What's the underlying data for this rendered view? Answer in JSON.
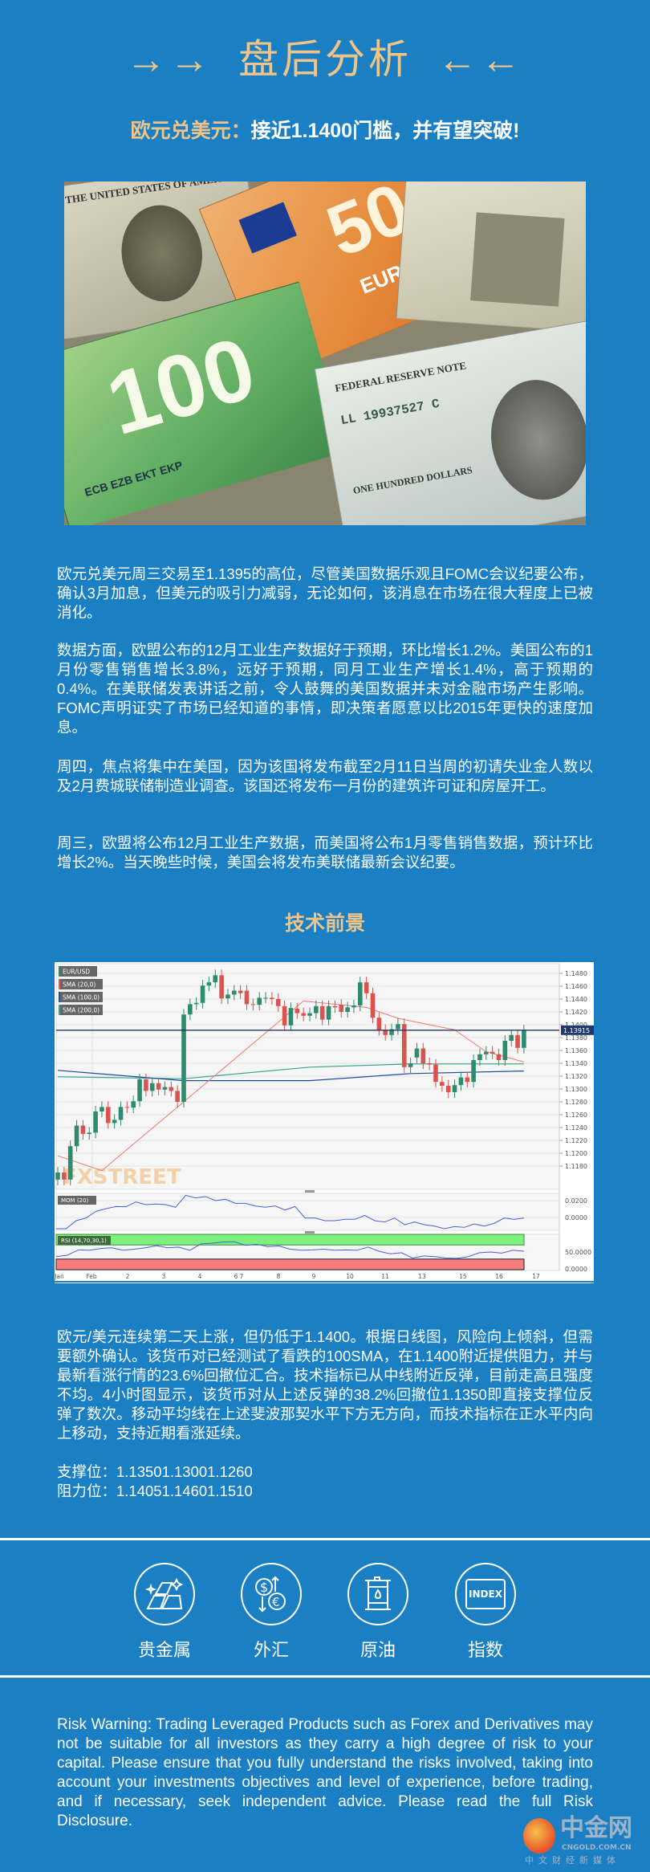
{
  "header": {
    "arrows_left": "→→",
    "title": "盘后分析",
    "arrows_right": "←←",
    "subtitle_pair": "欧元兑美元：",
    "subtitle_text": "接近1.1400门槛，并有望突破!"
  },
  "photo": {
    "note_labels": [
      "50",
      "EURO",
      "100",
      "ONE HUNDRED DOLLARS",
      "THE UNITED STATES OF AMERICA",
      "FEDERAL RESERVE NOTE",
      "LL 19937527 C",
      "ECB EZB EKT EKP"
    ]
  },
  "article": {
    "paragraphs": [
      "欧元兑美元周三交易至1.1395的高位，尽管美国数据乐观且FOMC会议纪要公布，确认3月加息，但美元的吸引力减弱，无论如何，该消息在市场在很大程度上已被消化。",
      "数据方面，欧盟公布的12月工业生产数据好于预期，环比增长1.2%。美国公布的1月份零售销售增长3.8%，远好于预期，同月工业生产增长1.4%，高于预期的0.4%。在美联储发表讲话之前，令人鼓舞的美国数据并未对金融市场产生影响。FOMC声明证实了市场已经知道的事情，即决策者愿意以比2015年更快的速度加息。",
      "周四，焦点将集中在美国，因为该国将发布截至2月11日当周的初请失业金人数以及2月费城联储制造业调查。该国还将发布一月份的建筑许可证和房屋开工。",
      "周三，欧盟将公布12月工业生产数据，而美国将公布1月零售销售数据，预计环比增长2%。当天晚些时候，美国会将发布美联储最新会议纪要。"
    ],
    "tech_heading": "技术前景",
    "tech_paragraph": "欧元/美元连续第二天上涨，但仍低于1.1400。根据日线图，风险向上倾斜，但需要额外确认。该货币对已经测试了看跌的100SMA，在1.1400附近提供阻力，并与最新看涨行情的23.6%回撤位汇合。技术指标已从中线附近反弹，目前走高且强度不均。4小时图显示，该货币对从上述反弹的38.2%回撤位1.1350即直接支撑位反弹了数次。移动平均线在上述斐波那契水平下方无方向，而技术指标在正水平内向上移动，支持近期看涨延续。",
    "support": "支撑位：1.13501.13001.1260",
    "resistance": "阻力位：1.14051.14601.1510"
  },
  "categories": [
    {
      "label": "贵金属",
      "icon": "gold-bars-icon"
    },
    {
      "label": "外汇",
      "icon": "currency-exchange-icon"
    },
    {
      "label": "原油",
      "icon": "oil-barrel-icon"
    },
    {
      "label": "指数",
      "icon": "index-icon",
      "icon_text": "INDEX"
    }
  ],
  "risk_warning": "Risk Warning: Trading Leveraged Products such as Forex and Derivatives may not be suitable for all investors as they carry a high degree of risk to your capital. Please ensure that you fully understand the risks involved, taking into account your investments objectives and level of experience, before trading, and if necessary, seek independent advice. Please read the full Risk Disclosure.",
  "logo": {
    "name": "中金网",
    "domain": "CNGOLD.COM.CN",
    "tagline": "中文财经新媒体"
  },
  "colors": {
    "background": "#1b7fc4",
    "gold": "#f0c487",
    "up": "#2e8b6e",
    "down": "#d9534f"
  },
  "chart_data": {
    "type": "candlestick",
    "symbol_label": "EUR/USD",
    "legend": [
      "EUR/USD",
      "SMA (20,0)",
      "SMA (100,0)",
      "SMA (200,0)"
    ],
    "legend_colors": [
      "#2e8b6e",
      "#e0594f",
      "#1f4fa0",
      "#3aa58c"
    ],
    "watermark": "FXSTREET",
    "current_price": "1.13915",
    "yticks": [
      "1.1480",
      "1.1460",
      "1.1440",
      "1.1420",
      "1.1400",
      "1.1380",
      "1.1360",
      "1.1340",
      "1.1320",
      "1.1300",
      "1.1280",
      "1.1260",
      "1.1240",
      "1.1220",
      "1.1200",
      "1.1180"
    ],
    "ylim": [
      1.1165,
      1.1495
    ],
    "xticks": [
      "Jan",
      "Feb",
      "2",
      "3",
      "4",
      "6",
      "7",
      "8",
      "9",
      "10",
      "11",
      "13",
      "15",
      "16",
      "17"
    ],
    "open": [
      1.1159,
      1.117,
      1.1159,
      1.1211,
      1.1243,
      1.123,
      1.1232,
      1.1265,
      1.1272,
      1.1247,
      1.1252,
      1.1272,
      1.1271,
      1.1281,
      1.1315,
      1.1297,
      1.1309,
      1.1299,
      1.1303,
      1.1297,
      1.128,
      1.1416,
      1.1432,
      1.1434,
      1.1461,
      1.1466,
      1.1477,
      1.1441,
      1.1447,
      1.1453,
      1.1453,
      1.1432,
      1.1431,
      1.1442,
      1.1442,
      1.144,
      1.1429,
      1.1399,
      1.1425,
      1.1418,
      1.1414,
      1.1418,
      1.1429,
      1.1408,
      1.1429,
      1.1431,
      1.142,
      1.1427,
      1.143,
      1.1466,
      1.1449,
      1.1411,
      1.1392,
      1.1384,
      1.1393,
      1.1401,
      1.1334,
      1.1349,
      1.1363,
      1.134,
      1.1338,
      1.1311,
      1.1305,
      1.1295,
      1.1306,
      1.1318,
      1.1311,
      1.1345,
      1.1354,
      1.1358,
      1.1354,
      1.1345,
      1.1375,
      1.1384,
      1.1364
    ],
    "close": [
      1.117,
      1.1159,
      1.1211,
      1.1243,
      1.123,
      1.1232,
      1.1265,
      1.1272,
      1.1247,
      1.1252,
      1.1272,
      1.1271,
      1.1281,
      1.1315,
      1.1297,
      1.1309,
      1.1299,
      1.1303,
      1.1297,
      1.128,
      1.1416,
      1.1432,
      1.1434,
      1.1461,
      1.1466,
      1.1477,
      1.1441,
      1.1447,
      1.1453,
      1.1449,
      1.1432,
      1.1431,
      1.1442,
      1.1442,
      1.144,
      1.1429,
      1.1399,
      1.1426,
      1.1418,
      1.1414,
      1.1418,
      1.1429,
      1.1408,
      1.1429,
      1.1427,
      1.142,
      1.1427,
      1.143,
      1.1466,
      1.1449,
      1.1411,
      1.1392,
      1.1384,
      1.1393,
      1.1401,
      1.1334,
      1.134,
      1.1363,
      1.134,
      1.1338,
      1.1311,
      1.1305,
      1.1295,
      1.1306,
      1.1318,
      1.1311,
      1.1345,
      1.1354,
      1.1358,
      1.1355,
      1.1345,
      1.1375,
      1.1384,
      1.1364,
      1.1391
    ],
    "sma20": [
      [
        0,
        1.1196
      ],
      [
        7,
        1.1173
      ],
      [
        20,
        1.128
      ],
      [
        39,
        1.1437
      ],
      [
        49,
        1.1427
      ],
      [
        54,
        1.141
      ],
      [
        63,
        1.1392
      ],
      [
        68,
        1.1358
      ],
      [
        74,
        1.1342
      ]
    ],
    "sma100": [
      [
        0,
        1.1329
      ],
      [
        20,
        1.1313
      ],
      [
        40,
        1.1313
      ],
      [
        56,
        1.1324
      ],
      [
        74,
        1.1328
      ]
    ],
    "sma200": [
      [
        0,
        1.1319
      ],
      [
        20,
        1.1316
      ],
      [
        40,
        1.1334
      ],
      [
        56,
        1.1339
      ],
      [
        74,
        1.1339
      ]
    ],
    "mom": {
      "label": "MOM (20)",
      "yticks": [
        "0.0200",
        "0.0000"
      ],
      "values": [
        -0.0133,
        -0.0133,
        -0.0038,
        -0.0006,
        0.0073,
        0.0105,
        0.013,
        0.0127,
        0.0184,
        0.0152,
        0.0159,
        0.0152,
        0.0121,
        0.0263,
        0.0232,
        0.0248,
        0.02,
        0.0216,
        0.0168,
        0.0168,
        0.0137,
        0.0121,
        0.0137,
        0.0089,
        0.013,
        -0.0006,
        -0.0006,
        -0.0038,
        -0.0038,
        -0.0022,
        -0.0022,
        0.0025,
        -0.0038,
        -0.0054,
        -0.0006,
        -0.0086,
        -0.0054,
        -0.0086,
        -0.0102,
        -0.0133,
        -0.0108,
        -0.0117,
        -0.0076,
        -0.0102,
        -0.007,
        -0.0006,
        -0.0022,
        -0.0006
      ]
    },
    "rsi": {
      "label": "RSI (14,70,30,1)",
      "yticks": [
        "50.0000",
        "0.0000"
      ],
      "upper": 70,
      "lower": 30,
      "values": [
        37,
        41,
        56,
        55,
        60,
        62,
        55,
        58,
        62,
        68,
        62,
        64,
        55,
        73,
        75,
        78,
        79,
        69,
        72,
        65,
        67,
        58,
        55,
        56,
        58,
        55,
        56,
        55,
        64,
        52,
        45,
        48,
        33,
        39,
        37,
        33,
        32,
        37,
        48,
        50,
        47,
        55,
        52
      ]
    }
  }
}
